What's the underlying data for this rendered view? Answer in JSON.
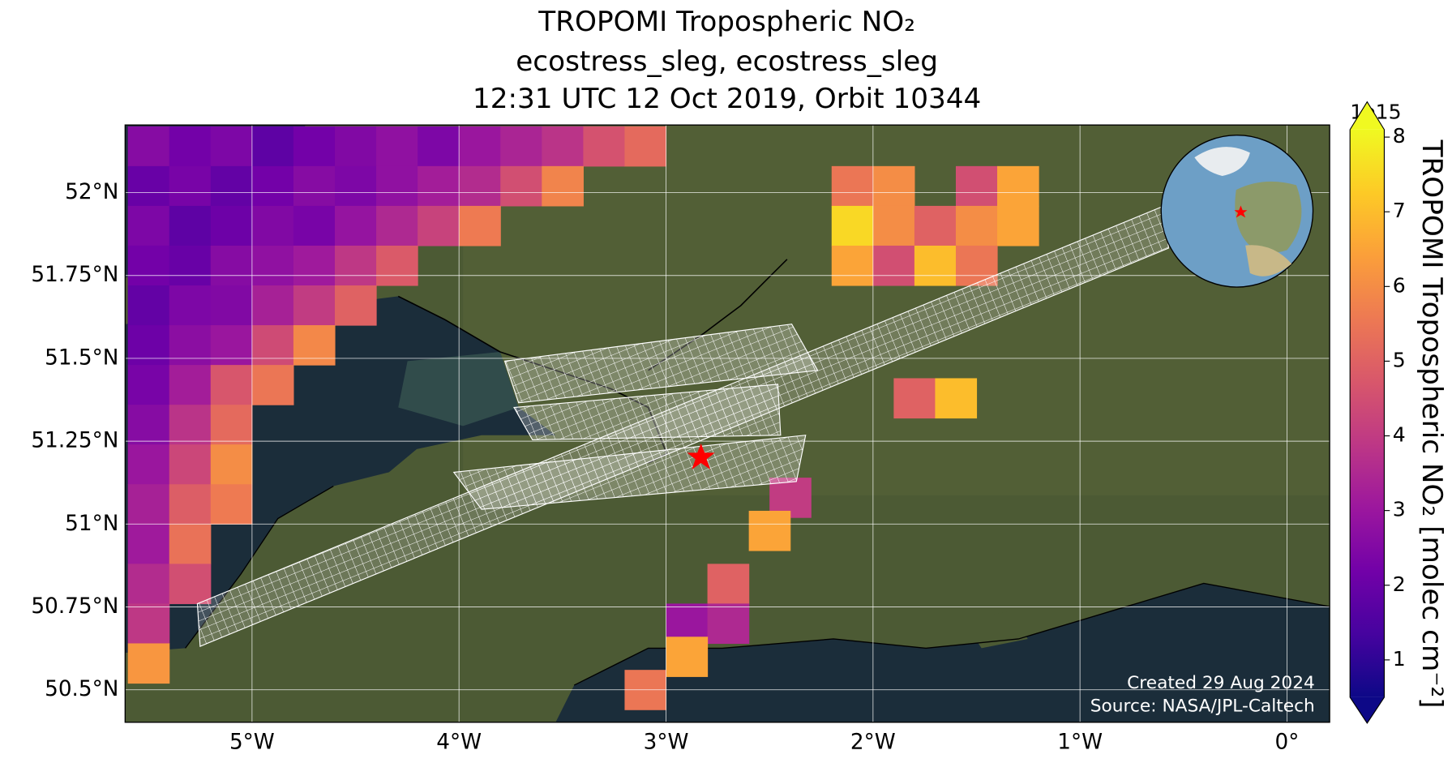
{
  "chart_data": {
    "type": "map",
    "title": [
      "TROPOMI Tropospheric NO₂",
      "ecostress_sleg, ecostress_sleg",
      "12:31 UTC 12 Oct 2019, Orbit 10344"
    ],
    "xlim": [
      -5.613,
      0.206
    ],
    "ylim": [
      50.402,
      52.204
    ],
    "xticks": [
      {
        "value": -5,
        "label": "5°W"
      },
      {
        "value": -4,
        "label": "4°W"
      },
      {
        "value": -3,
        "label": "3°W"
      },
      {
        "value": -2,
        "label": "2°W"
      },
      {
        "value": -1,
        "label": "1°W"
      },
      {
        "value": 0,
        "label": "0°"
      }
    ],
    "yticks": [
      {
        "value": 50.5,
        "label": "50.5°N"
      },
      {
        "value": 50.75,
        "label": "50.75°N"
      },
      {
        "value": 51,
        "label": "51°N"
      },
      {
        "value": 51.25,
        "label": "51.25°N"
      },
      {
        "value": 51.5,
        "label": "51.5°N"
      },
      {
        "value": 51.75,
        "label": "51.75°N"
      },
      {
        "value": 52,
        "label": "52°N"
      }
    ],
    "grid": true,
    "cmap": "plasma",
    "clim": [
      0.5,
      8.1
    ],
    "cbticks": [
      1,
      2,
      3,
      4,
      5,
      6,
      7,
      8
    ],
    "colorbar_offset": "1e15",
    "colorbar_label": "TROPOMI Tropospheric NO₂ [molec cm⁻²]",
    "credits": [
      "Created 29 Aug 2024",
      "Source: NASA/JPL-Caltech"
    ],
    "cells": [
      [
        -5.5,
        52.14,
        2.6
      ],
      [
        -5.3,
        52.14,
        2.2
      ],
      [
        -5.1,
        52.14,
        2.4
      ],
      [
        -4.9,
        52.14,
        1.8
      ],
      [
        -4.7,
        52.14,
        2.2
      ],
      [
        -4.5,
        52.14,
        2.5
      ],
      [
        -4.3,
        52.14,
        2.8
      ],
      [
        -4.1,
        52.14,
        2.4
      ],
      [
        -3.9,
        52.14,
        3.0
      ],
      [
        -3.7,
        52.14,
        3.4
      ],
      [
        -3.5,
        52.14,
        3.8
      ],
      [
        -3.3,
        52.14,
        4.6
      ],
      [
        -3.1,
        52.14,
        5.2
      ],
      [
        -5.5,
        52.02,
        2.0
      ],
      [
        -5.3,
        52.02,
        2.3
      ],
      [
        -5.1,
        52.02,
        1.9
      ],
      [
        -4.9,
        52.02,
        2.2
      ],
      [
        -4.7,
        52.02,
        2.6
      ],
      [
        -4.5,
        52.02,
        2.4
      ],
      [
        -4.3,
        52.02,
        2.8
      ],
      [
        -4.1,
        52.02,
        3.2
      ],
      [
        -3.9,
        52.02,
        3.6
      ],
      [
        -3.7,
        52.02,
        4.5
      ],
      [
        -3.5,
        52.02,
        5.8
      ],
      [
        -5.5,
        51.9,
        2.4
      ],
      [
        -5.3,
        51.9,
        1.8
      ],
      [
        -5.1,
        51.9,
        2.1
      ],
      [
        -4.9,
        51.9,
        2.5
      ],
      [
        -4.7,
        51.9,
        2.3
      ],
      [
        -4.5,
        51.9,
        2.9
      ],
      [
        -4.3,
        51.9,
        3.5
      ],
      [
        -4.1,
        51.9,
        4.2
      ],
      [
        -3.9,
        51.9,
        5.6
      ],
      [
        -5.5,
        51.78,
        2.2
      ],
      [
        -5.3,
        51.78,
        2.0
      ],
      [
        -5.1,
        51.78,
        2.6
      ],
      [
        -4.9,
        51.78,
        2.8
      ],
      [
        -4.7,
        51.78,
        3.1
      ],
      [
        -4.5,
        51.78,
        3.9
      ],
      [
        -4.3,
        51.78,
        4.8
      ],
      [
        -5.5,
        51.66,
        1.9
      ],
      [
        -5.3,
        51.66,
        2.4
      ],
      [
        -5.1,
        51.66,
        2.5
      ],
      [
        -4.9,
        51.66,
        3.3
      ],
      [
        -4.7,
        51.66,
        4.0
      ],
      [
        -4.5,
        51.66,
        5.0
      ],
      [
        -5.5,
        51.54,
        2.1
      ],
      [
        -5.3,
        51.54,
        2.7
      ],
      [
        -5.1,
        51.54,
        3.0
      ],
      [
        -4.9,
        51.54,
        4.4
      ],
      [
        -4.7,
        51.54,
        5.9
      ],
      [
        -5.5,
        51.42,
        2.3
      ],
      [
        -5.3,
        51.42,
        3.2
      ],
      [
        -5.1,
        51.42,
        4.7
      ],
      [
        -4.9,
        51.42,
        5.5
      ],
      [
        -5.5,
        51.3,
        2.6
      ],
      [
        -5.3,
        51.3,
        3.8
      ],
      [
        -5.1,
        51.3,
        5.2
      ],
      [
        -5.5,
        51.18,
        3.0
      ],
      [
        -5.3,
        51.18,
        4.3
      ],
      [
        -5.1,
        51.18,
        6.0
      ],
      [
        -5.5,
        51.06,
        3.3
      ],
      [
        -5.3,
        51.06,
        4.9
      ],
      [
        -5.1,
        51.06,
        5.6
      ],
      [
        -5.5,
        50.94,
        3.1
      ],
      [
        -5.3,
        50.94,
        5.4
      ],
      [
        -5.5,
        50.82,
        3.6
      ],
      [
        -5.3,
        50.82,
        4.5
      ],
      [
        -5.5,
        50.7,
        3.9
      ],
      [
        -5.5,
        50.58,
        6.2
      ],
      [
        -2.1,
        52.02,
        5.5
      ],
      [
        -1.9,
        52.02,
        6.0
      ],
      [
        -1.5,
        52.02,
        4.5
      ],
      [
        -1.3,
        52.02,
        6.5
      ],
      [
        -2.1,
        51.9,
        7.5
      ],
      [
        -1.9,
        51.9,
        6.0
      ],
      [
        -1.7,
        51.9,
        5.0
      ],
      [
        -1.5,
        51.9,
        6.0
      ],
      [
        -1.3,
        51.9,
        6.5
      ],
      [
        -2.1,
        51.78,
        6.5
      ],
      [
        -1.9,
        51.78,
        4.5
      ],
      [
        -1.7,
        51.78,
        7.0
      ],
      [
        -1.5,
        51.78,
        5.5
      ],
      [
        -1.8,
        51.38,
        5.0
      ],
      [
        -1.6,
        51.38,
        7.0
      ],
      [
        -2.4,
        51.08,
        4.0
      ],
      [
        -2.5,
        50.98,
        6.5
      ],
      [
        -2.7,
        50.82,
        5.0
      ],
      [
        -2.9,
        50.7,
        3.0
      ],
      [
        -2.7,
        50.7,
        3.5
      ],
      [
        -2.9,
        50.6,
        6.5
      ],
      [
        -3.1,
        50.5,
        5.5
      ]
    ]
  }
}
